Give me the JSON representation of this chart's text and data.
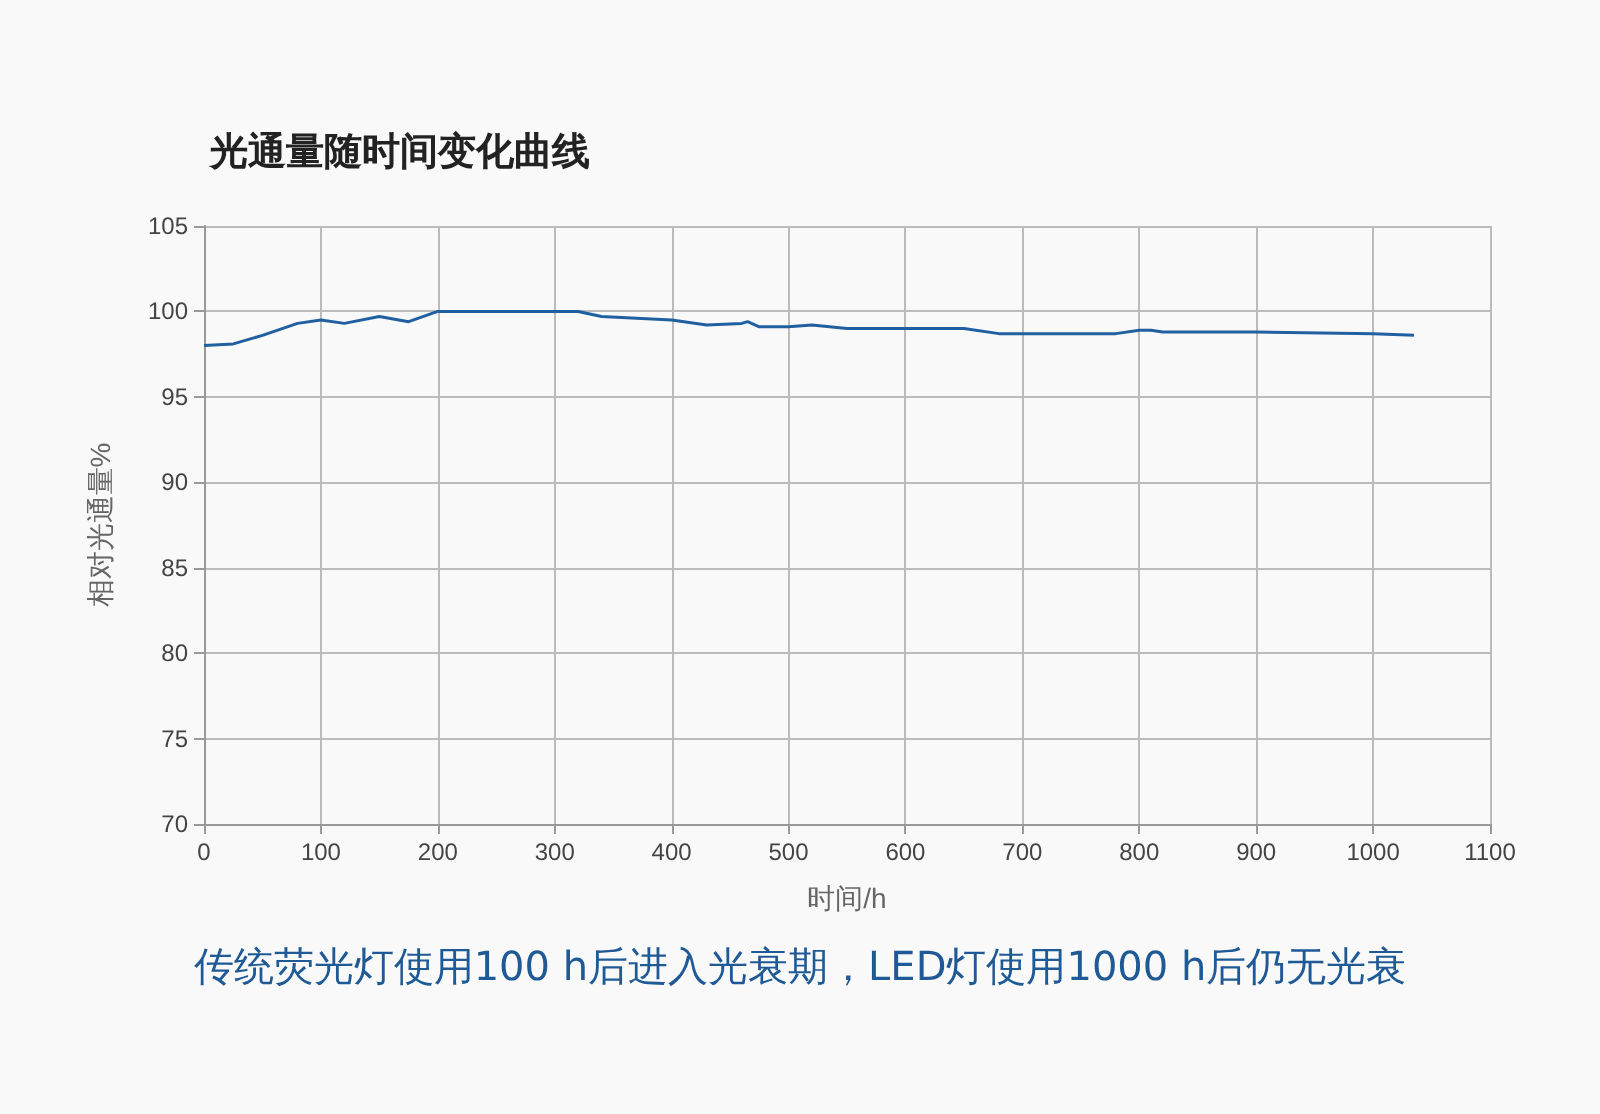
{
  "chart_data": {
    "type": "line",
    "title": "光通量随时间变化曲线",
    "xlabel": "时间/h",
    "ylabel": "相对光通量%",
    "annotations": [
      "传统荧光灯使用100 h后进入光衰期，LED灯使用1000 h后仍无光衰"
    ],
    "x": [
      0,
      25,
      50,
      80,
      100,
      120,
      150,
      175,
      200,
      320,
      340,
      370,
      400,
      430,
      460,
      465,
      475,
      500,
      520,
      550,
      650,
      680,
      780,
      800,
      810,
      820,
      900,
      1000,
      1035
    ],
    "series": [
      {
        "color": "#2060a0",
        "values": [
          98.0,
          98.1,
          98.6,
          99.3,
          99.5,
          99.3,
          99.7,
          99.4,
          100,
          100,
          99.7,
          99.6,
          99.5,
          99.2,
          99.3,
          99.4,
          99.1,
          99.1,
          99.2,
          99.0,
          99.0,
          98.7,
          98.7,
          98.9,
          98.9,
          98.8,
          98.8,
          98.7,
          98.6
        ]
      }
    ],
    "xlim": [
      0,
      1100
    ],
    "xticks": [
      0,
      100,
      200,
      300,
      400,
      500,
      600,
      700,
      800,
      900,
      1000,
      1100
    ],
    "ylim": [
      70,
      105
    ],
    "yticks": [
      70,
      75,
      80,
      85,
      90,
      95,
      100,
      105
    ],
    "grid": true,
    "marker": "none",
    "line_style": "solid"
  }
}
